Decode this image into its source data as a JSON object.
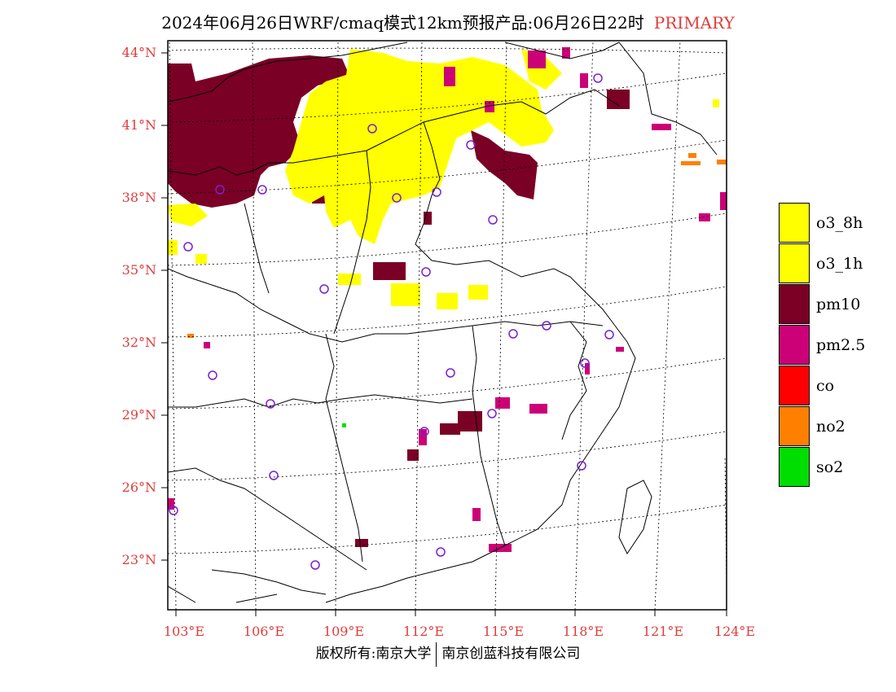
{
  "title": {
    "main": "2024年06月26日WRF/cmaq模式12km预报产品:06月26日22时",
    "mode": "PRIMARY"
  },
  "latitude_labels": [
    "44°N",
    "41°N",
    "38°N",
    "35°N",
    "32°N",
    "29°N",
    "26°N",
    "23°N"
  ],
  "longitude_labels": [
    "103°E",
    "106°E",
    "109°E",
    "112°E",
    "115°E",
    "118°E",
    "121°E",
    "124°E"
  ],
  "legend": [
    {
      "label": "o3_8h",
      "color": "#ffff00"
    },
    {
      "label": "o3_1h",
      "color": "#ffff00"
    },
    {
      "label": "pm10",
      "color": "#7a0026"
    },
    {
      "label": "pm2.5",
      "color": "#cc0077"
    },
    {
      "label": "co",
      "color": "#ff0000"
    },
    {
      "label": "no2",
      "color": "#ff8000"
    },
    {
      "label": "so2",
      "color": "#00dd00"
    }
  ],
  "footer": {
    "left": "版权所有:南京大学",
    "right": "南京创蓝科技有限公司"
  },
  "station_marker_color": "#7a20d0"
}
